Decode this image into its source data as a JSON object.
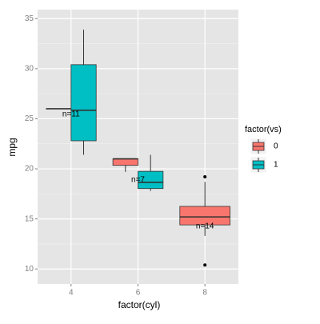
{
  "chart_data": {
    "type": "boxplot",
    "x_label": "factor(cyl)",
    "y_label": "mpg",
    "categories": [
      "4",
      "6",
      "8"
    ],
    "ylim": [
      8.5,
      35.9
    ],
    "yticks": [
      10,
      15,
      20,
      25,
      30,
      35
    ],
    "grid": true,
    "legend_title": "factor(vs)",
    "legend_position": "right",
    "series": [
      {
        "name": "0",
        "color": "#F8766D",
        "boxes": [
          {
            "min": 26,
            "q1": 26,
            "median": 26,
            "q3": 26,
            "max": 26,
            "outliers": []
          },
          {
            "min": 19.7,
            "q1": 20.35,
            "median": 21,
            "q3": 21,
            "max": 21,
            "outliers": []
          },
          {
            "min": 13.3,
            "q1": 14.4,
            "median": 15.2,
            "q3": 16.25,
            "max": 18.7,
            "outliers": [
              19.2,
              10.4
            ]
          }
        ]
      },
      {
        "name": "1",
        "color": "#00BFC4",
        "boxes": [
          {
            "min": 21.4,
            "q1": 22.8,
            "median": 25.85,
            "q3": 30.4,
            "max": 33.9,
            "outliers": []
          },
          {
            "min": 17.8,
            "q1": 18.03,
            "median": 18.65,
            "q3": 19.75,
            "max": 21.4,
            "outliers": []
          },
          null
        ]
      }
    ],
    "annotations": [
      "n=11",
      "n=7",
      "n=14"
    ]
  }
}
